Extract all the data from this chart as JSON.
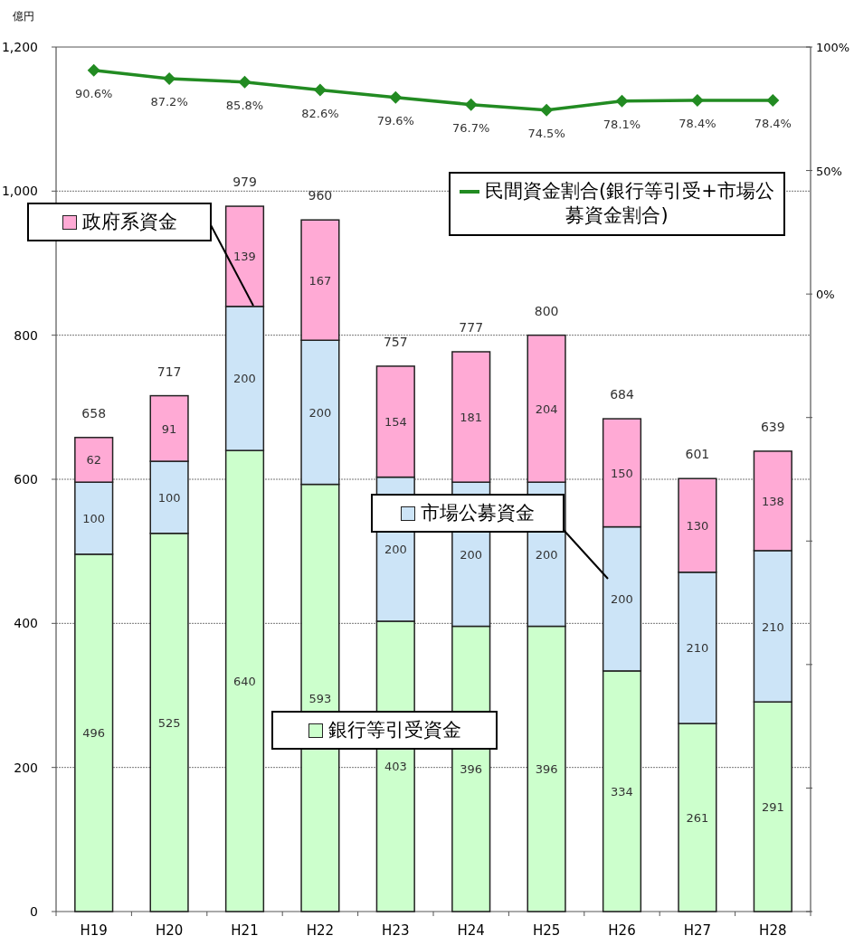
{
  "chart_data": {
    "type": "bar",
    "stacked": true,
    "ylabel": "億円",
    "categories": [
      "H19",
      "H20",
      "H21",
      "H22",
      "H23",
      "H24",
      "H25",
      "H26",
      "H27",
      "H28"
    ],
    "series": [
      {
        "name": "銀行等引受資金",
        "color": "#ccffcc",
        "values": [
          496,
          525,
          640,
          593,
          403,
          396,
          396,
          334,
          261,
          291
        ]
      },
      {
        "name": "市場公募資金",
        "color": "#cce4f7",
        "values": [
          100,
          100,
          200,
          200,
          200,
          200,
          200,
          200,
          210,
          210
        ]
      },
      {
        "name": "政府系資金",
        "color": "#ffaad5",
        "values": [
          62,
          91,
          139,
          167,
          154,
          181,
          204,
          150,
          130,
          138
        ]
      },
      {
        "name": "民間資金割合(銀行等引受+市場公募資金割合)",
        "type": "line",
        "axis": "y2",
        "color": "#228b22",
        "marker": "diamond",
        "values": [
          90.6,
          87.2,
          85.8,
          82.6,
          79.6,
          76.7,
          74.5,
          78.1,
          78.4,
          78.4
        ],
        "value_labels": [
          "90.6%",
          "87.2%",
          "85.8%",
          "82.6%",
          "79.6%",
          "76.7%",
          "74.5%",
          "78.1%",
          "78.4%",
          "78.4%"
        ]
      }
    ],
    "totals": [
      "658",
      "717",
      "979",
      "960",
      "757",
      "777",
      "800",
      "684",
      "601",
      "639"
    ],
    "data_labels": true,
    "ylim": [
      0,
      1200
    ],
    "yticks": [
      0,
      {
        "value": 200,
        "label": "200"
      },
      {
        "value": 400,
        "label": "400"
      },
      {
        "value": 600,
        "label": "600"
      },
      {
        "value": 800,
        "label": "800"
      },
      {
        "value": 1000,
        "label": "1,000"
      },
      {
        "value": 1200,
        "label": "1,200"
      }
    ],
    "y2lim": [
      -250,
      100
    ],
    "y2ticks": [
      {
        "value": -250,
        "label": null
      },
      {
        "value": -200,
        "label": null
      },
      {
        "value": -150,
        "label": null
      },
      {
        "value": -100,
        "label": null
      },
      {
        "value": -50,
        "label": null
      },
      {
        "value": 0,
        "label": "0%"
      },
      {
        "value": 50,
        "label": "50%"
      },
      {
        "value": 100,
        "label": "100%"
      }
    ],
    "grid": "y",
    "legend": "top right"
  }
}
